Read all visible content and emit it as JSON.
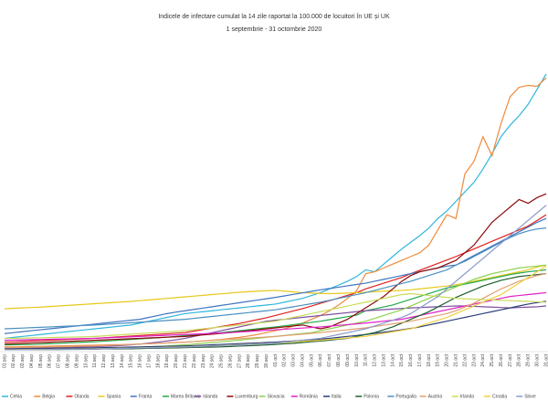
{
  "chart_data": {
    "type": "line",
    "title": "Indicele de infectare cumulat la 14 zile raportat la 100.000 de locuitori în UE și UK",
    "subtitle": "1 septembrie - 31 octombrie 2020",
    "ylim": [
      0,
      1700
    ],
    "grid": false,
    "legend": "bottom",
    "categories": [
      "01.sep",
      "02.sep",
      "03.sep",
      "04.sep",
      "05.sep",
      "06.sep",
      "07.sep",
      "08.sep",
      "09.sep",
      "10.sep",
      "11.sep",
      "12.sep",
      "13.sep",
      "14.sep",
      "15.sep",
      "16.sep",
      "17.sep",
      "18.sep",
      "19.sep",
      "20.sep",
      "21.sep",
      "22.sep",
      "23.sep",
      "24.sep",
      "25.sep",
      "26.sep",
      "27.sep",
      "28.sep",
      "29.sep",
      "30.sep",
      "01.oct",
      "02.oct",
      "03.oct",
      "04.oct",
      "05.oct",
      "06.oct",
      "07.oct",
      "08.oct",
      "09.oct",
      "10.oct",
      "11.oct",
      "12.oct",
      "13.oct",
      "14.oct",
      "15.oct",
      "16.oct",
      "17.oct",
      "18.oct",
      "19.oct",
      "20.oct",
      "21.oct",
      "22.oct",
      "23.oct",
      "24.oct",
      "25.oct",
      "26.oct",
      "27.oct",
      "28.oct",
      "29.oct",
      "30.oct",
      "31.oct"
    ],
    "series": [
      {
        "name": "Cehia",
        "color": "#2fb6dc",
        "values": [
          70,
          75,
          80,
          85,
          90,
          95,
          100,
          105,
          110,
          115,
          120,
          125,
          130,
          135,
          140,
          150,
          160,
          170,
          180,
          190,
          200,
          205,
          210,
          215,
          220,
          225,
          230,
          235,
          240,
          245,
          250,
          260,
          270,
          280,
          295,
          310,
          330,
          350,
          370,
          395,
          430,
          420,
          460,
          500,
          540,
          575,
          610,
          650,
          700,
          740,
          790,
          840,
          890,
          960,
          1040,
          1130,
          1190,
          1240,
          1300,
          1380,
          1460
        ]
      },
      {
        "name": "Belgia",
        "color": "#ee8a3c",
        "values": [
          25,
          25,
          26,
          27,
          28,
          29,
          30,
          31,
          32,
          33,
          34,
          35,
          36,
          37,
          38,
          40,
          42,
          44,
          46,
          48,
          50,
          53,
          56,
          60,
          64,
          70,
          75,
          82,
          90,
          100,
          110,
          120,
          135,
          150,
          170,
          190,
          215,
          245,
          280,
          320,
          410,
          420,
          440,
          460,
          480,
          500,
          520,
          560,
          640,
          720,
          700,
          935,
          1000,
          1130,
          1030,
          1200,
          1340,
          1390,
          1400,
          1395,
          1440
        ]
      },
      {
        "name": "Olanda",
        "color": "#e02020",
        "values": [
          50,
          52,
          54,
          56,
          58,
          60,
          62,
          64,
          66,
          68,
          70,
          73,
          76,
          79,
          82,
          85,
          88,
          91,
          94,
          97,
          100,
          108,
          116,
          124,
          132,
          140,
          148,
          158,
          168,
          178,
          190,
          202,
          214,
          226,
          240,
          254,
          268,
          282,
          296,
          310,
          330,
          345,
          360,
          375,
          390,
          410,
          428,
          446,
          464,
          482,
          500,
          520,
          540,
          560,
          580,
          600,
          620,
          640,
          660,
          690,
          720
        ]
      },
      {
        "name": "Spania",
        "color": "#e8c81a",
        "values": [
          225,
          228,
          230,
          232,
          234,
          237,
          240,
          243,
          246,
          249,
          252,
          255,
          258,
          261,
          264,
          268,
          272,
          276,
          280,
          284,
          288,
          292,
          296,
          300,
          304,
          308,
          312,
          315,
          318,
          320,
          322,
          318,
          314,
          310,
          308,
          306,
          305,
          306,
          308,
          310,
          312,
          315,
          318,
          320,
          322,
          325,
          330,
          335,
          340,
          345,
          352,
          360,
          370,
          380,
          390,
          400,
          410,
          420,
          430,
          445,
          455
        ]
      },
      {
        "name": "Franta",
        "color": "#3f74c0",
        "values": [
          95,
          100,
          105,
          110,
          115,
          120,
          125,
          130,
          135,
          140,
          145,
          150,
          155,
          160,
          165,
          170,
          180,
          190,
          200,
          208,
          215,
          222,
          229,
          236,
          243,
          250,
          257,
          264,
          271,
          278,
          285,
          293,
          301,
          309,
          317,
          325,
          332,
          339,
          346,
          353,
          360,
          370,
          380,
          390,
          400,
          410,
          420,
          430,
          440,
          450,
          455,
          480,
          505,
          530,
          555,
          580,
          605,
          630,
          655,
          680,
          700
        ]
      },
      {
        "name": "Marea Britanie",
        "color": "#22a84a",
        "values": [
          35,
          36,
          37,
          38,
          40,
          42,
          44,
          46,
          48,
          50,
          52,
          55,
          58,
          61,
          64,
          67,
          70,
          73,
          76,
          80,
          84,
          88,
          92,
          96,
          100,
          105,
          110,
          115,
          120,
          125,
          130,
          136,
          142,
          148,
          154,
          160,
          168,
          176,
          184,
          192,
          215,
          225,
          235,
          245,
          260,
          275,
          290,
          305,
          320,
          335,
          345,
          355,
          365,
          375,
          385,
          395,
          405,
          413,
          420,
          425,
          430
        ]
      },
      {
        "name": "Islanda",
        "color": "#7e4fa0",
        "values": [
          20,
          20,
          20,
          21,
          21,
          22,
          22,
          23,
          24,
          25,
          26,
          28,
          30,
          33,
          36,
          40,
          45,
          50,
          56,
          62,
          70,
          80,
          90,
          100,
          110,
          120,
          130,
          140,
          150,
          160,
          165,
          170,
          175,
          180,
          185,
          190,
          195,
          200,
          205,
          210,
          215,
          218,
          221,
          224,
          227,
          230,
          232,
          234,
          236,
          238,
          240,
          240,
          238,
          236,
          234,
          232,
          230,
          232,
          234,
          236,
          240
        ]
      },
      {
        "name": "Luxemburg",
        "color": "#8b0a0a",
        "values": [
          40,
          42,
          44,
          46,
          48,
          50,
          52,
          54,
          56,
          58,
          60,
          62,
          64,
          66,
          68,
          70,
          72,
          74,
          76,
          78,
          80,
          84,
          88,
          92,
          96,
          100,
          105,
          110,
          115,
          120,
          125,
          130,
          135,
          140,
          130,
          120,
          130,
          150,
          170,
          200,
          230,
          260,
          290,
          330,
          370,
          400,
          420,
          430,
          440,
          460,
          480,
          520,
          560,
          620,
          680,
          720,
          760,
          800,
          780,
          810,
          830
        ]
      },
      {
        "name": "Slovacia",
        "color": "#8fd14f",
        "values": [
          10,
          10,
          10,
          11,
          11,
          12,
          12,
          13,
          14,
          15,
          16,
          17,
          18,
          20,
          22,
          24,
          26,
          28,
          30,
          33,
          36,
          40,
          44,
          48,
          52,
          56,
          60,
          65,
          70,
          75,
          80,
          85,
          90,
          95,
          100,
          110,
          120,
          130,
          140,
          150,
          160,
          175,
          190,
          205,
          220,
          240,
          260,
          280,
          300,
          320,
          340,
          360,
          380,
          395,
          410,
          420,
          430,
          440,
          445,
          450,
          455
        ]
      },
      {
        "name": "România",
        "color": "#e020c8",
        "values": [
          60,
          61,
          62,
          63,
          64,
          65,
          66,
          67,
          68,
          69,
          70,
          72,
          74,
          76,
          78,
          80,
          82,
          84,
          86,
          88,
          90,
          92,
          94,
          96,
          98,
          100,
          103,
          106,
          109,
          112,
          115,
          118,
          121,
          124,
          127,
          130,
          134,
          138,
          142,
          146,
          150,
          155,
          160,
          165,
          170,
          180,
          190,
          200,
          210,
          220,
          230,
          240,
          250,
          260,
          270,
          280,
          290,
          295,
          300,
          305,
          310
        ]
      },
      {
        "name": "Italia",
        "color": "#2c3e7a",
        "values": [
          15,
          15,
          16,
          16,
          17,
          17,
          18,
          18,
          19,
          19,
          20,
          21,
          22,
          23,
          24,
          25,
          26,
          27,
          28,
          29,
          30,
          32,
          34,
          36,
          38,
          40,
          42,
          44,
          46,
          48,
          50,
          53,
          56,
          59,
          62,
          66,
          70,
          75,
          80,
          85,
          90,
          96,
          102,
          108,
          115,
          122,
          130,
          140,
          150,
          160,
          170,
          180,
          190,
          200,
          210,
          220,
          230,
          240,
          250,
          258,
          265
        ]
      },
      {
        "name": "Polonia",
        "color": "#1f5f2f",
        "values": [
          10,
          10,
          10,
          10,
          11,
          11,
          11,
          12,
          12,
          13,
          13,
          14,
          14,
          15,
          15,
          16,
          17,
          18,
          19,
          20,
          21,
          22,
          23,
          24,
          25,
          27,
          29,
          31,
          33,
          35,
          38,
          41,
          44,
          48,
          52,
          56,
          60,
          65,
          70,
          80,
          90,
          100,
          115,
          130,
          150,
          170,
          190,
          210,
          235,
          260,
          285,
          305,
          325,
          345,
          360,
          375,
          385,
          395,
          400,
          405,
          410
        ]
      },
      {
        "name": "Portugalia",
        "color": "#4a90c0",
        "values": [
          120,
          122,
          124,
          126,
          128,
          130,
          132,
          134,
          136,
          138,
          140,
          143,
          146,
          149,
          152,
          155,
          158,
          161,
          164,
          167,
          170,
          175,
          180,
          185,
          190,
          195,
          200,
          205,
          210,
          215,
          220,
          228,
          236,
          244,
          252,
          260,
          270,
          280,
          290,
          300,
          310,
          322,
          334,
          346,
          358,
          370,
          385,
          400,
          415,
          430,
          455,
          475,
          500,
          525,
          550,
          575,
          600,
          620,
          635,
          645,
          650
        ]
      },
      {
        "name": "Austria",
        "color": "#e0a070",
        "values": [
          20,
          21,
          22,
          23,
          24,
          25,
          26,
          27,
          28,
          29,
          30,
          32,
          34,
          36,
          38,
          40,
          42,
          44,
          46,
          48,
          50,
          53,
          56,
          59,
          62,
          65,
          68,
          71,
          74,
          77,
          80,
          84,
          88,
          92,
          96,
          100,
          105,
          110,
          115,
          120,
          125,
          132,
          139,
          146,
          153,
          160,
          170,
          180,
          190,
          200,
          215,
          235,
          255,
          280,
          305,
          330,
          350,
          370,
          385,
          400,
          410
        ]
      },
      {
        "name": "Irlanda",
        "color": "#c8dc5a",
        "values": [
          70,
          70,
          71,
          72,
          73,
          74,
          75,
          76,
          77,
          78,
          80,
          83,
          86,
          89,
          92,
          95,
          98,
          101,
          104,
          107,
          110,
          115,
          120,
          125,
          130,
          135,
          140,
          145,
          150,
          155,
          160,
          170,
          180,
          190,
          200,
          210,
          220,
          230,
          240,
          250,
          260,
          270,
          280,
          290,
          300,
          305,
          300,
          295,
          290,
          285,
          280,
          278,
          276,
          274,
          272,
          270,
          268,
          266,
          264,
          262,
          260
        ]
      },
      {
        "name": "Croatia",
        "color": "#f0d040",
        "values": [
          10,
          10,
          11,
          11,
          12,
          12,
          13,
          13,
          14,
          14,
          15,
          16,
          17,
          18,
          19,
          20,
          21,
          22,
          23,
          24,
          25,
          27,
          29,
          31,
          33,
          35,
          37,
          39,
          41,
          43,
          45,
          48,
          51,
          54,
          57,
          60,
          64,
          68,
          72,
          76,
          80,
          88,
          96,
          104,
          112,
          120,
          135,
          150,
          165,
          180,
          200,
          220,
          240,
          260,
          280,
          300,
          330,
          360,
          390,
          420,
          450
        ]
      },
      {
        "name": "Slove",
        "color": "#8a9ac8",
        "values": [
          10,
          10,
          10,
          10,
          11,
          11,
          12,
          12,
          13,
          13,
          14,
          15,
          16,
          17,
          18,
          19,
          20,
          21,
          22,
          23,
          24,
          26,
          28,
          30,
          32,
          34,
          36,
          38,
          40,
          42,
          45,
          50,
          55,
          60,
          65,
          70,
          80,
          90,
          100,
          110,
          120,
          135,
          150,
          165,
          180,
          200,
          230,
          260,
          290,
          330,
          370,
          410,
          450,
          490,
          530,
          570,
          610,
          650,
          690,
          730,
          770
        ]
      }
    ]
  }
}
